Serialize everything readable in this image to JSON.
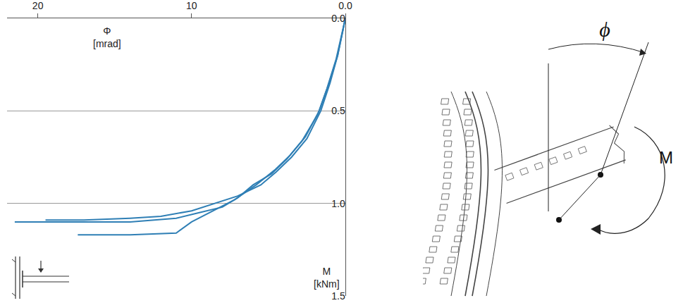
{
  "chart_data": {
    "type": "line",
    "x_label": "Φ [mrad]",
    "y_label": "M [kNm]",
    "xlim": [
      22,
      0
    ],
    "xticks": [
      20,
      10,
      {
        "value": 0,
        "label": "0.0"
      }
    ],
    "ylim": [
      0,
      1.5
    ],
    "yticks": [
      {
        "value": 0,
        "label": "0.0"
      },
      {
        "value": 0.5,
        "label": "0.5"
      },
      {
        "value": 1.0,
        "label": "1.0"
      },
      {
        "value": 1.5,
        "label": "1.5"
      }
    ],
    "grid": true,
    "series": [
      {
        "color": "#2f7fb5",
        "x": [
          0,
          0.5,
          1.0,
          1.6,
          2.5,
          3.5,
          4.5,
          5.5,
          7.0,
          8.5,
          10.0,
          12.0,
          14.0,
          17.0,
          19.5
        ],
        "values": [
          0,
          0.2,
          0.35,
          0.5,
          0.65,
          0.75,
          0.83,
          0.9,
          0.96,
          1.0,
          1.04,
          1.07,
          1.08,
          1.09,
          1.09
        ]
      },
      {
        "color": "#2f7fb5",
        "x": [
          0,
          0.6,
          1.2,
          1.8,
          2.8,
          3.8,
          4.8,
          6.0,
          7.0,
          8.0,
          9.5,
          11.0,
          14.0,
          17.0,
          21.5
        ],
        "values": [
          0,
          0.22,
          0.38,
          0.52,
          0.66,
          0.76,
          0.84,
          0.9,
          0.97,
          1.02,
          1.05,
          1.08,
          1.1,
          1.1,
          1.1
        ]
      },
      {
        "color": "#2f7fb5",
        "x": [
          0,
          0.5,
          1.1,
          1.7,
          2.6,
          3.6,
          4.6,
          5.8,
          7.2,
          8.6,
          10.0,
          11.0,
          14.0,
          17.4
        ],
        "values": [
          0,
          0.2,
          0.36,
          0.5,
          0.64,
          0.74,
          0.82,
          0.9,
          0.98,
          1.04,
          1.1,
          1.16,
          1.17,
          1.17
        ]
      }
    ]
  },
  "diagram": {
    "rotation_label": "ϕ",
    "moment_label": "M"
  }
}
